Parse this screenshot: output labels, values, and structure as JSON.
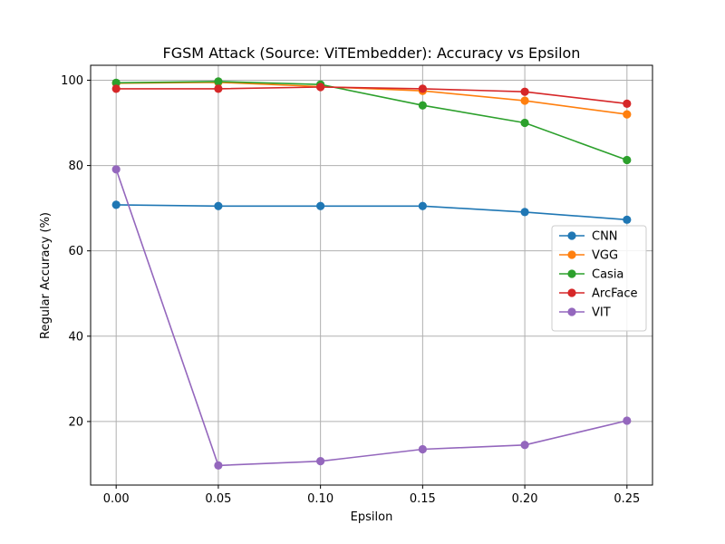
{
  "chart_data": {
    "type": "line",
    "title": "FGSM Attack (Source: ViTEmbedder): Accuracy vs Epsilon",
    "xlabel": "Epsilon",
    "ylabel": "Regular Accuracy (%)",
    "x": [
      0.0,
      0.05,
      0.1,
      0.15,
      0.2,
      0.25
    ],
    "x_tick_labels": [
      "0.00",
      "0.05",
      "0.10",
      "0.15",
      "0.20",
      "0.25"
    ],
    "y_ticks": [
      20,
      40,
      60,
      80,
      100
    ],
    "xlim": [
      -0.0125,
      0.2625
    ],
    "ylim": [
      5.1,
      103.5
    ],
    "grid": true,
    "legend_position": "center-right",
    "series": [
      {
        "name": "CNN",
        "color": "#1f77b4",
        "values": [
          70.8,
          70.5,
          70.5,
          70.5,
          69.1,
          67.3
        ]
      },
      {
        "name": "VGG",
        "color": "#ff7f0e",
        "values": [
          99.3,
          99.5,
          98.5,
          97.5,
          95.2,
          92.0
        ]
      },
      {
        "name": "Casia",
        "color": "#2ca02c",
        "values": [
          99.4,
          99.7,
          99.0,
          94.1,
          90.0,
          81.3
        ]
      },
      {
        "name": "ArcFace",
        "color": "#d62728",
        "values": [
          98.0,
          98.0,
          98.4,
          98.0,
          97.3,
          94.5
        ]
      },
      {
        "name": "VIT",
        "color": "#9467bd",
        "values": [
          79.1,
          9.7,
          10.7,
          13.5,
          14.5,
          20.2
        ]
      }
    ]
  }
}
